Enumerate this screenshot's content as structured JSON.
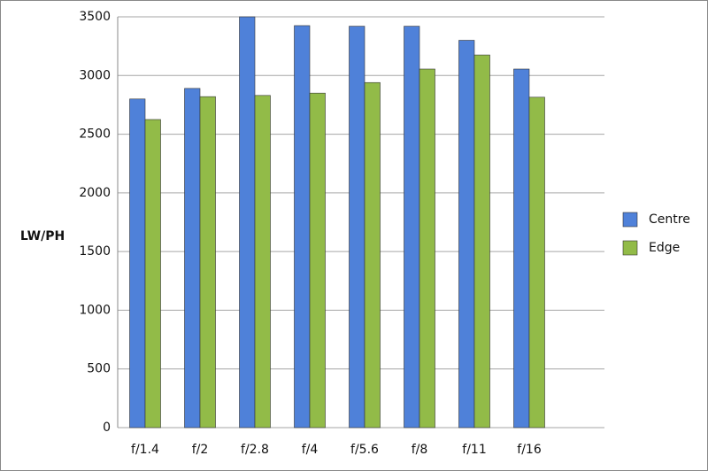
{
  "chart_data": {
    "type": "bar",
    "y_label": "LW/PH",
    "categories": [
      "f/1.4",
      "f/2",
      "f/2.8",
      "f/4",
      "f/5.6",
      "f/8",
      "f/11",
      "f/16"
    ],
    "series": [
      {
        "name": "Centre",
        "color": "#4f81d9",
        "values": [
          2800,
          2890,
          3500,
          3425,
          3420,
          3420,
          3300,
          3055
        ]
      },
      {
        "name": "Edge",
        "color": "#92bb48",
        "values": [
          2625,
          2820,
          2830,
          2850,
          2940,
          3055,
          3175,
          2815
        ]
      }
    ],
    "ylim": [
      0,
      3500
    ],
    "yticks": [
      0,
      500,
      1000,
      1500,
      2000,
      2500,
      3000,
      3500
    ],
    "grid": true,
    "legend": "right"
  }
}
